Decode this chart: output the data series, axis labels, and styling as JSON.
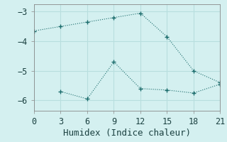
{
  "line1_x": [
    0,
    3,
    6,
    9,
    12,
    15,
    18,
    21
  ],
  "line1_y": [
    -3.65,
    -3.5,
    -3.35,
    -3.2,
    -3.05,
    -3.85,
    -5.0,
    -5.4
  ],
  "line2_x": [
    3,
    6,
    9,
    12,
    15,
    18,
    21
  ],
  "line2_y": [
    -5.7,
    -5.95,
    -4.7,
    -5.6,
    -5.65,
    -5.75,
    -5.45
  ],
  "line_color": "#1a6b6b",
  "bg_color": "#d4f0f0",
  "grid_color": "#b8dede",
  "xlabel": "Humidex (Indice chaleur)",
  "xlim": [
    0,
    21
  ],
  "ylim": [
    -6.35,
    -2.75
  ],
  "xticks": [
    0,
    3,
    6,
    9,
    12,
    15,
    18,
    21
  ],
  "yticks": [
    -6,
    -5,
    -4,
    -3
  ],
  "font_size": 8.5,
  "xlabel_fontsize": 9
}
